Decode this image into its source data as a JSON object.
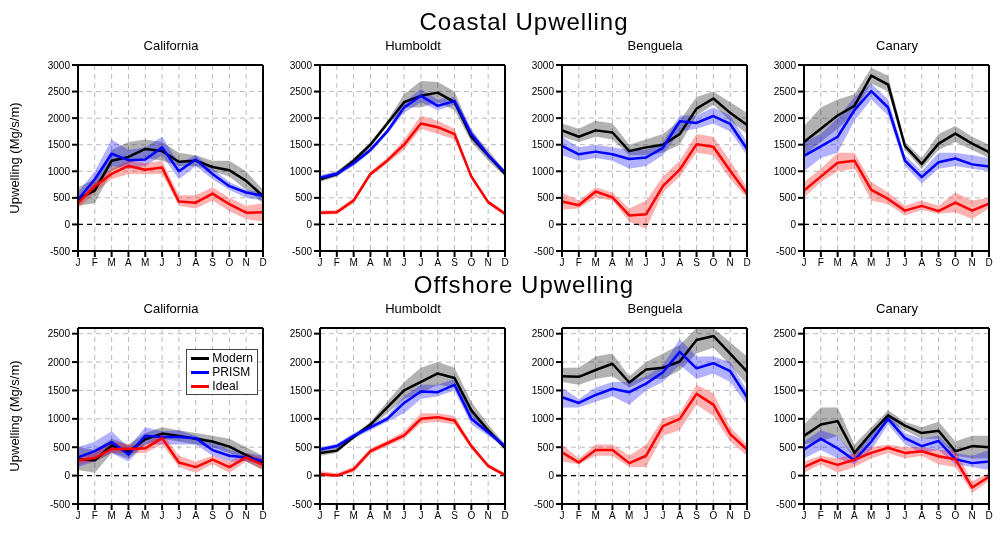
{
  "chart_data": [
    {
      "type": "line",
      "title": "California",
      "ylabel": "Upwelling (Mg/s/m)",
      "annotations": [
        "Coastal Upwelling"
      ],
      "categories": [
        "J",
        "F",
        "M",
        "A",
        "M",
        "J",
        "J",
        "A",
        "S",
        "O",
        "N",
        "D"
      ],
      "ylim": [
        -500,
        3000
      ],
      "yticks": [
        -500,
        0,
        500,
        1000,
        1500,
        2000,
        2500,
        3000
      ],
      "grid": true,
      "ref_lines": [
        {
          "axis": "y",
          "value": 0,
          "color": "#000000",
          "line_style": "dashed"
        }
      ],
      "series": [
        {
          "color": "#000000",
          "values": [
            470,
            640,
            1200,
            1270,
            1420,
            1380,
            1180,
            1200,
            1080,
            1020,
            820,
            530
          ],
          "lower": [
            350,
            400,
            1000,
            1150,
            1250,
            1200,
            1100,
            1100,
            1000,
            900,
            650,
            400
          ],
          "upper": [
            700,
            850,
            1400,
            1550,
            1600,
            1550,
            1350,
            1300,
            1200,
            1200,
            1000,
            650
          ]
        },
        {
          "color": "#0000ff",
          "values": [
            470,
            850,
            1330,
            1210,
            1220,
            1450,
            1000,
            1220,
            950,
            720,
            600,
            540
          ],
          "lower": [
            400,
            700,
            1100,
            1050,
            1100,
            1300,
            850,
            1100,
            850,
            650,
            500,
            450
          ],
          "upper": [
            600,
            1000,
            1600,
            1400,
            1450,
            1650,
            1150,
            1300,
            1050,
            800,
            650,
            600
          ]
        },
        {
          "color": "#ff0000",
          "values": [
            400,
            720,
            950,
            1100,
            1030,
            1070,
            430,
            410,
            580,
            380,
            220,
            230
          ],
          "lower": [
            300,
            600,
            850,
            950,
            950,
            950,
            350,
            300,
            450,
            250,
            100,
            50
          ],
          "upper": [
            500,
            800,
            1050,
            1200,
            1150,
            1200,
            550,
            550,
            700,
            500,
            350,
            400
          ]
        }
      ]
    },
    {
      "type": "line",
      "title": "Humboldt",
      "categories": [
        "J",
        "F",
        "M",
        "A",
        "M",
        "J",
        "J",
        "A",
        "S",
        "O",
        "N",
        "D"
      ],
      "ylim": [
        -500,
        3000
      ],
      "yticks": [
        -500,
        0,
        500,
        1000,
        1500,
        2000,
        2500,
        3000
      ],
      "grid": true,
      "ref_lines": [
        {
          "axis": "y",
          "value": 0,
          "color": "#000000",
          "line_style": "dashed"
        }
      ],
      "series": [
        {
          "color": "#000000",
          "values": [
            850,
            950,
            1200,
            1500,
            1900,
            2300,
            2420,
            2480,
            2300,
            1650,
            1300,
            950
          ],
          "lower": [
            800,
            900,
            1150,
            1450,
            1850,
            2200,
            2200,
            2300,
            2150,
            1550,
            1200,
            900
          ],
          "upper": [
            900,
            1000,
            1250,
            1550,
            1950,
            2450,
            2700,
            2680,
            2500,
            1750,
            1400,
            1000
          ]
        },
        {
          "color": "#0000ff",
          "values": [
            880,
            950,
            1150,
            1400,
            1750,
            2200,
            2420,
            2230,
            2320,
            1700,
            1300,
            980
          ],
          "lower": [
            830,
            900,
            1100,
            1350,
            1700,
            2100,
            2300,
            2150,
            2250,
            1600,
            1250,
            950
          ],
          "upper": [
            930,
            1000,
            1200,
            1450,
            1800,
            2300,
            2550,
            2350,
            2400,
            1800,
            1350,
            1020
          ]
        },
        {
          "color": "#ff0000",
          "values": [
            220,
            230,
            450,
            950,
            1200,
            1500,
            1900,
            1830,
            1700,
            900,
            420,
            200
          ],
          "lower": [
            180,
            190,
            400,
            900,
            1150,
            1400,
            1800,
            1700,
            1600,
            850,
            380,
            160
          ],
          "upper": [
            260,
            270,
            500,
            1000,
            1250,
            1600,
            2050,
            1950,
            1800,
            950,
            460,
            240
          ]
        }
      ]
    },
    {
      "type": "line",
      "title": "Benguela",
      "categories": [
        "J",
        "F",
        "M",
        "A",
        "M",
        "J",
        "J",
        "A",
        "S",
        "O",
        "N",
        "D"
      ],
      "ylim": [
        -500,
        3000
      ],
      "yticks": [
        -500,
        0,
        500,
        1000,
        1500,
        2000,
        2500,
        3000
      ],
      "grid": true,
      "ref_lines": [
        {
          "axis": "y",
          "value": 0,
          "color": "#000000",
          "line_style": "dashed"
        }
      ],
      "series": [
        {
          "color": "#000000",
          "values": [
            1770,
            1650,
            1770,
            1730,
            1380,
            1450,
            1500,
            1700,
            2180,
            2370,
            2100,
            1870
          ],
          "lower": [
            1650,
            1550,
            1650,
            1600,
            1300,
            1300,
            1350,
            1500,
            2050,
            2250,
            1950,
            1700
          ],
          "upper": [
            1900,
            1800,
            1950,
            1900,
            1500,
            1600,
            1700,
            1950,
            2400,
            2500,
            2300,
            2100
          ]
        },
        {
          "color": "#0000ff",
          "values": [
            1480,
            1320,
            1370,
            1320,
            1230,
            1260,
            1440,
            1940,
            1910,
            2040,
            1890,
            1420
          ],
          "lower": [
            1300,
            1200,
            1250,
            1200,
            1050,
            1100,
            1300,
            1750,
            1800,
            1900,
            1750,
            1300
          ],
          "upper": [
            1650,
            1450,
            1500,
            1450,
            1400,
            1400,
            1550,
            2050,
            2050,
            2200,
            2050,
            1550
          ]
        },
        {
          "color": "#ff0000",
          "values": [
            430,
            360,
            620,
            510,
            170,
            190,
            720,
            1030,
            1510,
            1460,
            1010,
            580
          ],
          "lower": [
            280,
            300,
            500,
            450,
            50,
            -80,
            600,
            900,
            1350,
            1300,
            850,
            500
          ],
          "upper": [
            600,
            450,
            700,
            600,
            300,
            450,
            900,
            1200,
            1700,
            1650,
            1200,
            700
          ]
        }
      ]
    },
    {
      "type": "line",
      "title": "Canary",
      "categories": [
        "J",
        "F",
        "M",
        "A",
        "M",
        "J",
        "J",
        "A",
        "S",
        "O",
        "N",
        "D"
      ],
      "ylim": [
        -500,
        3000
      ],
      "yticks": [
        -500,
        0,
        500,
        1000,
        1500,
        2000,
        2500,
        3000
      ],
      "grid": true,
      "ref_lines": [
        {
          "axis": "y",
          "value": 0,
          "color": "#000000",
          "line_style": "dashed"
        }
      ],
      "series": [
        {
          "color": "#000000",
          "values": [
            1550,
            1800,
            2050,
            2230,
            2800,
            2630,
            1480,
            1140,
            1520,
            1710,
            1520,
            1360
          ],
          "lower": [
            1300,
            1550,
            1800,
            2100,
            2650,
            2500,
            1400,
            1050,
            1400,
            1550,
            1400,
            1250
          ],
          "upper": [
            1850,
            2200,
            2350,
            2450,
            2950,
            2800,
            1550,
            1250,
            1700,
            1850,
            1650,
            1500
          ]
        },
        {
          "color": "#0000ff",
          "values": [
            1290,
            1470,
            1650,
            2150,
            2510,
            2200,
            1200,
            890,
            1170,
            1240,
            1130,
            1090
          ],
          "lower": [
            1000,
            1250,
            1350,
            1950,
            2350,
            2050,
            1100,
            770,
            1050,
            1100,
            1050,
            1000
          ],
          "upper": [
            1550,
            1700,
            2000,
            2400,
            2650,
            2350,
            1300,
            1000,
            1350,
            1350,
            1300,
            1250
          ]
        },
        {
          "color": "#ff0000",
          "values": [
            640,
            900,
            1160,
            1200,
            650,
            480,
            260,
            350,
            250,
            410,
            260,
            390
          ],
          "lower": [
            500,
            800,
            1000,
            1050,
            450,
            380,
            170,
            270,
            200,
            230,
            100,
            300
          ],
          "upper": [
            800,
            1050,
            1350,
            1350,
            800,
            600,
            350,
            450,
            350,
            600,
            450,
            500
          ]
        }
      ]
    },
    {
      "type": "line",
      "title": "California",
      "ylabel": "Upwelling (Mg/s/m)",
      "annotations": [
        "Offshore Upwelling"
      ],
      "legend": "top right",
      "categories": [
        "J",
        "F",
        "M",
        "A",
        "M",
        "J",
        "J",
        "A",
        "S",
        "O",
        "N",
        "D"
      ],
      "ylim": [
        -500,
        2600
      ],
      "yticks": [
        -500,
        0,
        500,
        1000,
        1500,
        2000,
        2500
      ],
      "grid": true,
      "ref_lines": [
        {
          "axis": "y",
          "value": 0,
          "color": "#000000",
          "line_style": "dashed"
        }
      ],
      "series": [
        {
          "name": "Modern",
          "color": "#000000",
          "values": [
            290,
            270,
            530,
            420,
            640,
            740,
            700,
            650,
            600,
            510,
            360,
            220
          ],
          "lower": [
            100,
            50,
            400,
            300,
            550,
            650,
            600,
            550,
            500,
            400,
            250,
            100
          ],
          "upper": [
            500,
            450,
            650,
            550,
            750,
            850,
            800,
            750,
            700,
            650,
            500,
            350
          ]
        },
        {
          "name": "PRISM",
          "color": "#0000ff",
          "values": [
            320,
            430,
            590,
            370,
            700,
            680,
            680,
            660,
            450,
            350,
            320,
            260
          ],
          "lower": [
            150,
            250,
            400,
            250,
            550,
            550,
            550,
            550,
            350,
            250,
            250,
            200
          ],
          "upper": [
            500,
            600,
            780,
            500,
            850,
            780,
            800,
            700,
            600,
            450,
            400,
            350
          ]
        },
        {
          "name": "Ideal",
          "color": "#ff0000",
          "values": [
            270,
            310,
            470,
            470,
            480,
            660,
            230,
            150,
            280,
            150,
            320,
            190
          ],
          "lower": [
            200,
            250,
            400,
            400,
            400,
            550,
            150,
            50,
            200,
            50,
            250,
            100
          ],
          "upper": [
            350,
            400,
            600,
            550,
            550,
            750,
            350,
            250,
            350,
            250,
            400,
            300
          ]
        }
      ]
    },
    {
      "type": "line",
      "title": "Humboldt",
      "categories": [
        "J",
        "F",
        "M",
        "A",
        "M",
        "J",
        "J",
        "A",
        "S",
        "O",
        "N",
        "D"
      ],
      "ylim": [
        -500,
        2600
      ],
      "yticks": [
        -500,
        0,
        500,
        1000,
        1500,
        2000,
        2500
      ],
      "grid": true,
      "ref_lines": [
        {
          "axis": "y",
          "value": 0,
          "color": "#000000",
          "line_style": "dashed"
        }
      ],
      "series": [
        {
          "color": "#000000",
          "values": [
            400,
            440,
            680,
            900,
            1200,
            1500,
            1650,
            1800,
            1720,
            1150,
            800,
            490
          ],
          "lower": [
            350,
            400,
            650,
            850,
            1100,
            1350,
            1450,
            1600,
            1550,
            1050,
            750,
            450
          ],
          "upper": [
            450,
            500,
            720,
            950,
            1300,
            1650,
            1900,
            2000,
            1900,
            1300,
            900,
            550
          ]
        },
        {
          "color": "#0000ff",
          "values": [
            460,
            520,
            700,
            850,
            1000,
            1280,
            1480,
            1470,
            1600,
            1000,
            760,
            520
          ],
          "lower": [
            420,
            480,
            650,
            800,
            950,
            1100,
            1350,
            1400,
            1500,
            900,
            700,
            480
          ],
          "upper": [
            500,
            560,
            750,
            900,
            1050,
            1400,
            1600,
            1600,
            1700,
            1100,
            820,
            560
          ]
        },
        {
          "color": "#ff0000",
          "values": [
            30,
            0,
            110,
            430,
            570,
            710,
            1000,
            1030,
            970,
            520,
            170,
            10
          ],
          "lower": [
            -20,
            -30,
            60,
            380,
            520,
            650,
            920,
            950,
            900,
            470,
            130,
            -20
          ],
          "upper": [
            80,
            40,
            160,
            480,
            620,
            780,
            1100,
            1100,
            1050,
            570,
            210,
            40
          ]
        }
      ]
    },
    {
      "type": "line",
      "title": "Benguela",
      "categories": [
        "J",
        "F",
        "M",
        "A",
        "M",
        "J",
        "J",
        "A",
        "S",
        "O",
        "N",
        "D"
      ],
      "ylim": [
        -500,
        2600
      ],
      "yticks": [
        -500,
        0,
        500,
        1000,
        1500,
        2000,
        2500
      ],
      "grid": true,
      "ref_lines": [
        {
          "axis": "y",
          "value": 0,
          "color": "#000000",
          "line_style": "dashed"
        }
      ],
      "series": [
        {
          "color": "#000000",
          "values": [
            1750,
            1740,
            1860,
            1970,
            1640,
            1870,
            1900,
            2010,
            2390,
            2460,
            2150,
            1830
          ],
          "lower": [
            1650,
            1600,
            1700,
            1750,
            1550,
            1700,
            1700,
            1850,
            2150,
            2250,
            1950,
            1600
          ],
          "upper": [
            1900,
            1900,
            2100,
            2150,
            1750,
            2000,
            2150,
            2300,
            2600,
            2600,
            2350,
            2100
          ]
        },
        {
          "color": "#0000ff",
          "values": [
            1380,
            1280,
            1420,
            1530,
            1470,
            1620,
            1820,
            2180,
            1890,
            1980,
            1840,
            1380
          ],
          "lower": [
            1200,
            1200,
            1300,
            1400,
            1250,
            1500,
            1650,
            1950,
            1700,
            1800,
            1650,
            1250
          ],
          "upper": [
            1550,
            1350,
            1550,
            1650,
            1650,
            1750,
            1950,
            2400,
            2100,
            2100,
            2000,
            1500
          ]
        },
        {
          "color": "#ff0000",
          "values": [
            410,
            230,
            450,
            450,
            220,
            350,
            870,
            1000,
            1440,
            1250,
            730,
            460
          ],
          "lower": [
            250,
            200,
            350,
            350,
            150,
            150,
            700,
            800,
            1250,
            1050,
            600,
            350
          ],
          "upper": [
            550,
            300,
            550,
            550,
            350,
            550,
            1000,
            1100,
            1600,
            1450,
            850,
            550
          ]
        }
      ]
    },
    {
      "type": "line",
      "title": "Canary",
      "categories": [
        "J",
        "F",
        "M",
        "A",
        "M",
        "J",
        "J",
        "A",
        "S",
        "O",
        "N",
        "D"
      ],
      "ylim": [
        -500,
        2600
      ],
      "yticks": [
        -500,
        0,
        500,
        1000,
        1500,
        2000,
        2500
      ],
      "grid": true,
      "ref_lines": [
        {
          "axis": "y",
          "value": 0,
          "color": "#000000",
          "line_style": "dashed"
        }
      ],
      "series": [
        {
          "color": "#000000",
          "values": [
            700,
            900,
            960,
            400,
            750,
            1060,
            880,
            750,
            790,
            430,
            520,
            500
          ],
          "lower": [
            550,
            600,
            700,
            300,
            650,
            950,
            800,
            650,
            650,
            350,
            300,
            300
          ],
          "upper": [
            900,
            1200,
            1200,
            550,
            850,
            1150,
            950,
            850,
            950,
            600,
            700,
            700
          ]
        },
        {
          "color": "#0000ff",
          "values": [
            460,
            650,
            480,
            270,
            600,
            1000,
            660,
            520,
            610,
            290,
            220,
            250
          ],
          "lower": [
            300,
            450,
            300,
            200,
            450,
            900,
            550,
            400,
            450,
            200,
            150,
            100
          ],
          "upper": [
            600,
            800,
            700,
            350,
            750,
            1100,
            750,
            650,
            700,
            400,
            350,
            450
          ]
        },
        {
          "color": "#ff0000",
          "values": [
            150,
            280,
            190,
            280,
            400,
            490,
            400,
            430,
            340,
            290,
            -210,
            -20
          ],
          "lower": [
            50,
            200,
            50,
            150,
            300,
            400,
            300,
            350,
            200,
            150,
            -300,
            -100
          ],
          "upper": [
            250,
            350,
            300,
            400,
            500,
            550,
            500,
            500,
            450,
            450,
            -100,
            50
          ]
        }
      ]
    }
  ]
}
